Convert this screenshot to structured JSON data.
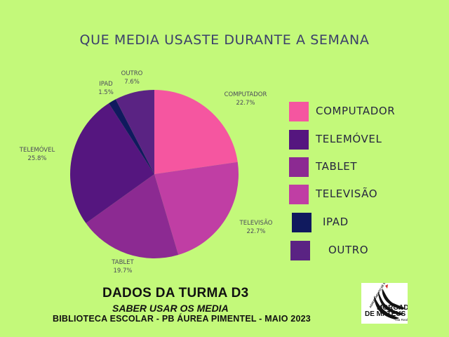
{
  "title": "QUE MEDIA USASTE DURANTE A SEMANA",
  "colors": {
    "background": "#c3f97a",
    "computador": "#f556a0",
    "telemovel": "#55167f",
    "tablet": "#8c2a92",
    "televisao": "#c03ea4",
    "ipad": "#101a5e",
    "outro": "#5a2383"
  },
  "chart_data": {
    "type": "pie",
    "title": "QUE MEDIA USASTE DURANTE A SEMANA",
    "slices": [
      {
        "name": "COMPUTADOR",
        "value": 22.7,
        "value_label": "22.7%",
        "color": "#f556a0"
      },
      {
        "name": "TELEVISÃO",
        "value": 22.7,
        "value_label": "22.7%",
        "color": "#c03ea4"
      },
      {
        "name": "TABLET",
        "value": 19.7,
        "value_label": "19.7%",
        "color": "#8c2a92"
      },
      {
        "name": "TELEMÓVEL",
        "value": 25.8,
        "value_label": "25.8%",
        "color": "#55167f"
      },
      {
        "name": "IPAD",
        "value": 1.5,
        "value_label": "1.5%",
        "color": "#101a5e"
      },
      {
        "name": "OUTRO",
        "value": 7.6,
        "value_label": "7.6%",
        "color": "#5a2383"
      }
    ],
    "legend_placement": "right",
    "legend": [
      {
        "label": "COMPUTADOR",
        "color": "#f556a0"
      },
      {
        "label": "TELEMÓVEL",
        "color": "#55167f"
      },
      {
        "label": "TABLET",
        "color": "#8c2a92"
      },
      {
        "label": "TELEVISÃO",
        "color": "#c03ea4"
      },
      {
        "label": "IPAD",
        "color": "#101a5e"
      },
      {
        "label": "OUTRO",
        "color": "#5a2383"
      }
    ]
  },
  "footer": {
    "line1": "DADOS DA TURMA D3",
    "line2": "SABER USAR OS MEDIA",
    "line3": "BIBLIOTECA ESCOLAR - PB ÁUREA PIMENTEL - MAIO 2023"
  },
  "logo": {
    "small_text": "AGRUPAMENTO DE ESCOLAS",
    "name_line1": "MORGADO",
    "name_line2": "DE MATEUS",
    "place": "Vila Real"
  }
}
